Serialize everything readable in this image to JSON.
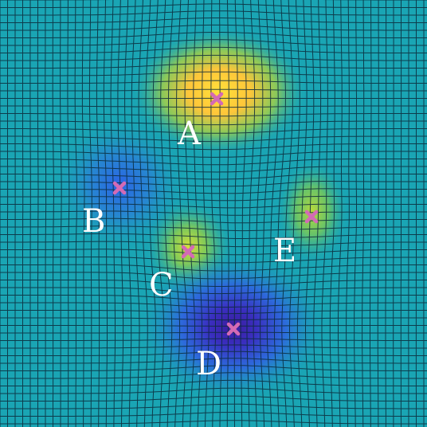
{
  "figure": {
    "description_type": "deformed-grid-potential-map",
    "base_color": "#1aa5b4",
    "grid_line_color": "#0b2a3a",
    "marker_color": "#d46ab5",
    "label_color": "#ffffff"
  },
  "points": [
    {
      "id": "A",
      "label": "A",
      "kind": "peak",
      "strength": 1.0
    },
    {
      "id": "B",
      "label": "B",
      "kind": "well",
      "strength": 0.35
    },
    {
      "id": "C",
      "label": "C",
      "kind": "peak",
      "strength": 0.55
    },
    {
      "id": "D",
      "label": "D",
      "kind": "well",
      "strength": 1.0
    },
    {
      "id": "E",
      "label": "E",
      "kind": "peak",
      "strength": 0.45
    }
  ],
  "colormap": {
    "low": "#3a1fa8",
    "mid_low": "#2f6fe0",
    "mid": "#1aa5b4",
    "mid_high": "#8fcf4a",
    "high": "#ffd23a"
  }
}
